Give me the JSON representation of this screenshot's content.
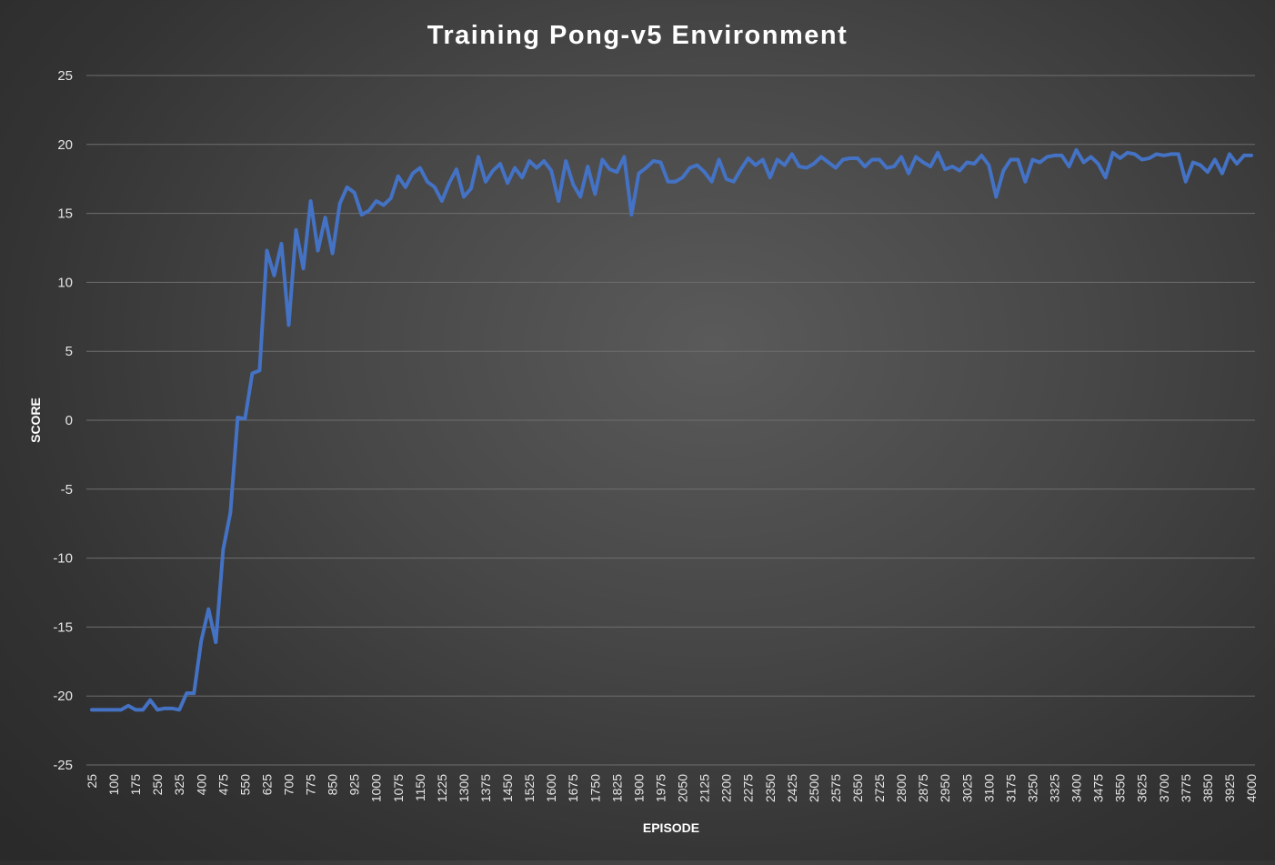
{
  "chart_data": {
    "type": "line",
    "title": "Training Pong-v5 Environment",
    "xlabel": "EPISODE",
    "ylabel": "SCORE",
    "ylim": [
      -25,
      25
    ],
    "yticks": [
      25,
      20,
      15,
      10,
      5,
      0,
      -5,
      -10,
      -15,
      -20,
      -25
    ],
    "xticks": [
      "25",
      "100",
      "175",
      "250",
      "325",
      "400",
      "475",
      "550",
      "625",
      "700",
      "775",
      "850",
      "925",
      "1000",
      "1075",
      "1150",
      "1225",
      "1300",
      "1375",
      "1450",
      "1525",
      "1600",
      "1675",
      "1750",
      "1825",
      "1900",
      "1975",
      "2050",
      "2125",
      "2200",
      "2275",
      "2350",
      "2425",
      "2500",
      "2575",
      "2650",
      "2725",
      "2800",
      "2875",
      "2950",
      "3025",
      "3100",
      "3175",
      "3250",
      "3325",
      "3400",
      "3475",
      "3550",
      "3625",
      "3700",
      "3775",
      "3850",
      "3925",
      "4000"
    ],
    "grid": true,
    "legend": "none",
    "line_color": "#4472c4",
    "x": [
      25,
      50,
      75,
      100,
      125,
      150,
      175,
      200,
      225,
      250,
      275,
      300,
      325,
      350,
      375,
      400,
      425,
      450,
      475,
      500,
      525,
      550,
      575,
      600,
      625,
      650,
      675,
      700,
      725,
      750,
      775,
      800,
      825,
      850,
      875,
      900,
      925,
      950,
      975,
      1000,
      1025,
      1050,
      1075,
      1100,
      1125,
      1150,
      1175,
      1200,
      1225,
      1250,
      1275,
      1300,
      1325,
      1350,
      1375,
      1400,
      1425,
      1450,
      1475,
      1500,
      1525,
      1550,
      1575,
      1600,
      1625,
      1650,
      1675,
      1700,
      1725,
      1750,
      1775,
      1800,
      1825,
      1850,
      1875,
      1900,
      1925,
      1950,
      1975,
      2000,
      2025,
      2050,
      2075,
      2100,
      2125,
      2150,
      2175,
      2200,
      2225,
      2250,
      2275,
      2300,
      2325,
      2350,
      2375,
      2400,
      2425,
      2450,
      2475,
      2500,
      2525,
      2550,
      2575,
      2600,
      2625,
      2650,
      2675,
      2700,
      2725,
      2750,
      2775,
      2800,
      2825,
      2850,
      2875,
      2900,
      2925,
      2950,
      2975,
      3000,
      3025,
      3050,
      3075,
      3100,
      3125,
      3150,
      3175,
      3200,
      3225,
      3250,
      3275,
      3300,
      3325,
      3350,
      3375,
      3400,
      3425,
      3450,
      3475,
      3500,
      3525,
      3550,
      3575,
      3600,
      3625,
      3650,
      3675,
      3700,
      3725,
      3750,
      3775,
      3800,
      3825,
      3850,
      3875,
      3900,
      3925,
      3950,
      3975,
      4000
    ],
    "y": [
      -21,
      -21,
      -21,
      -21,
      -21,
      -20.7,
      -21,
      -21,
      -20.3,
      -21,
      -20.9,
      -20.9,
      -21,
      -19.8,
      -19.8,
      -16,
      -13.7,
      -16.1,
      -9.4,
      -6.7,
      0.2,
      0.1,
      3.4,
      3.6,
      12.3,
      10.5,
      12.8,
      6.9,
      13.8,
      11,
      15.9,
      12.3,
      14.7,
      12.1,
      15.7,
      16.9,
      16.5,
      14.9,
      15.2,
      15.9,
      15.6,
      16.1,
      17.7,
      16.9,
      17.9,
      18.3,
      17.3,
      16.9,
      15.9,
      17.2,
      18.2,
      16.2,
      16.8,
      19.1,
      17.3,
      18.1,
      18.6,
      17.2,
      18.3,
      17.6,
      18.8,
      18.3,
      18.8,
      18.1,
      15.9,
      18.8,
      17.1,
      16.2,
      18.4,
      16.4,
      18.9,
      18.2,
      18,
      19.1,
      14.9,
      17.9,
      18.3,
      18.8,
      18.7,
      17.3,
      17.3,
      17.6,
      18.3,
      18.5,
      18,
      17.3,
      18.9,
      17.5,
      17.3,
      18.2,
      19,
      18.5,
      18.9,
      17.6,
      18.9,
      18.5,
      19.3,
      18.4,
      18.3,
      18.6,
      19.1,
      18.7,
      18.3,
      18.9,
      19,
      19,
      18.4,
      18.9,
      18.9,
      18.3,
      18.4,
      19.1,
      17.9,
      19.1,
      18.7,
      18.4,
      19.4,
      18.2,
      18.4,
      18.1,
      18.7,
      18.6,
      19.2,
      18.5,
      16.2,
      18.1,
      18.9,
      18.9,
      17.3,
      18.9,
      18.7,
      19.1,
      19.2,
      19.2,
      18.4,
      19.6,
      18.7,
      19.1,
      18.6,
      17.6,
      19.4,
      19,
      19.4,
      19.3,
      18.9,
      19,
      19.3,
      19.2,
      19.3,
      19.3,
      17.3,
      18.7,
      18.5,
      18,
      18.9,
      17.9,
      19.3,
      18.6,
      19.2,
      19.2
    ]
  }
}
